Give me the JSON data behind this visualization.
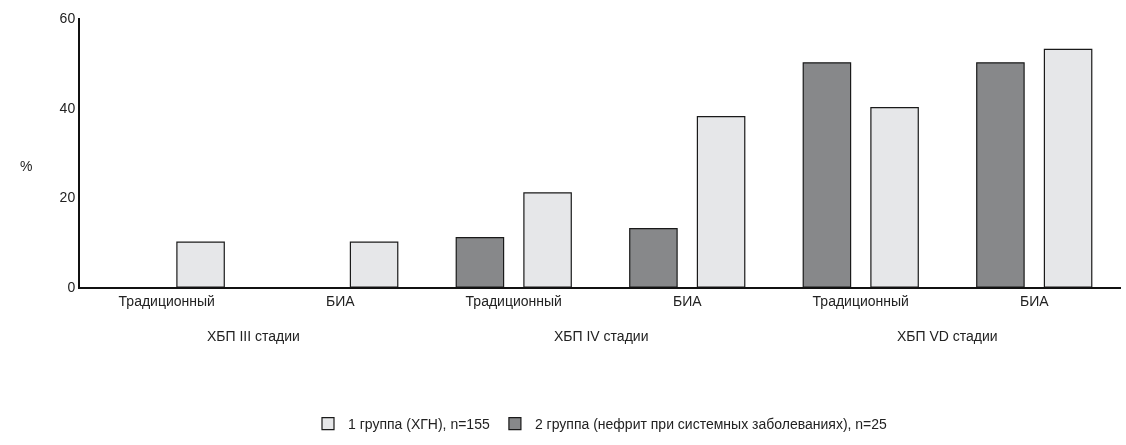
{
  "chart_data": {
    "type": "bar",
    "ylabel": "%",
    "categories": [
      "Традиционный",
      "БИА",
      "Традиционный",
      "БИА",
      "Традиционный",
      "БИА"
    ],
    "series": [
      {
        "name": "2 группа (нефрит при системных заболеваниях), n=25",
        "color": "#87888a",
        "values": [
          null,
          null,
          11,
          13,
          50,
          50
        ]
      },
      {
        "name": "1 группа (ХГН), n=155",
        "color": "#e6e7e9",
        "values": [
          10,
          10,
          21,
          38,
          40,
          53
        ]
      }
    ],
    "annotations": [
      "ХБП III стадии",
      "ХБП IV стадии",
      "ХБП VD стадии"
    ],
    "ylim": [
      0,
      60
    ],
    "yticks": [
      0,
      20,
      40,
      60
    ],
    "legend": "bottom"
  }
}
